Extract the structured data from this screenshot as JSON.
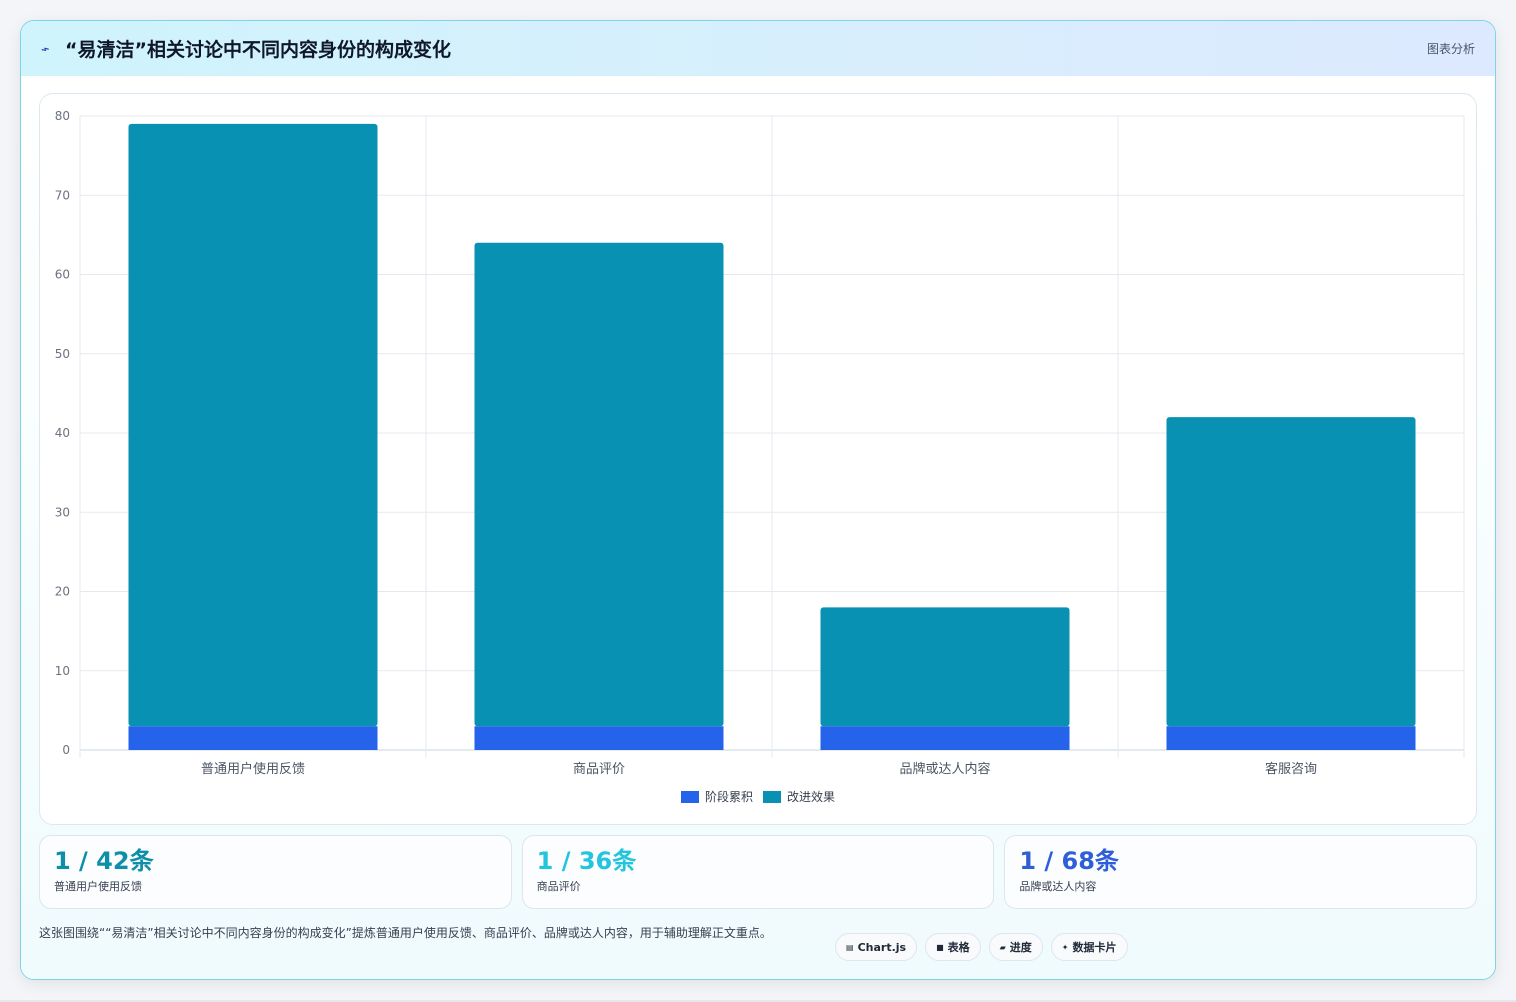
{
  "header": {
    "icon": "lightning-icon",
    "title": "“易清洁”相关讨论中不同内容身份的构成变化",
    "tag": "图表分析"
  },
  "chart_data": {
    "type": "bar",
    "stacked": true,
    "categories": [
      "普通用户使用反馈",
      "商品评价",
      "品牌或达人内容",
      "客服咨询"
    ],
    "series": [
      {
        "name": "阶段累积",
        "color": "#2563eb",
        "values": [
          3,
          3,
          3,
          3
        ]
      },
      {
        "name": "改进效果",
        "color": "#0891b2",
        "values": [
          76,
          61,
          15,
          39
        ]
      }
    ],
    "yticks": [
      "0",
      "10",
      "20",
      "30",
      "40",
      "50",
      "60",
      "70",
      "80"
    ],
    "ylim": [
      0,
      80
    ],
    "grid": true,
    "legend_position": "bottom"
  },
  "stats": [
    {
      "value": "1 / 42条",
      "label": "普通用户使用反馈",
      "color": "#0e8fa8"
    },
    {
      "value": "1 / 36条",
      "label": "商品评价",
      "color": "#22c5dd"
    },
    {
      "value": "1 / 68条",
      "label": "品牌或达人内容",
      "color": "#2f5fd8"
    }
  ],
  "footer": {
    "description": "这张图围绕““易清洁”相关讨论中不同内容身份的构成变化”提炼普通用户使用反馈、商品评价、品牌或达人内容，用于辅助理解正文重点。",
    "chips": [
      {
        "icon": "chart-icon",
        "glyph": "▤",
        "label": "Chart.js"
      },
      {
        "icon": "table-icon",
        "glyph": "■",
        "label": "表格"
      },
      {
        "icon": "progress-icon",
        "glyph": "▰",
        "label": "进度"
      },
      {
        "icon": "sparkle-icon",
        "glyph": "✦",
        "label": "数据卡片"
      }
    ]
  }
}
